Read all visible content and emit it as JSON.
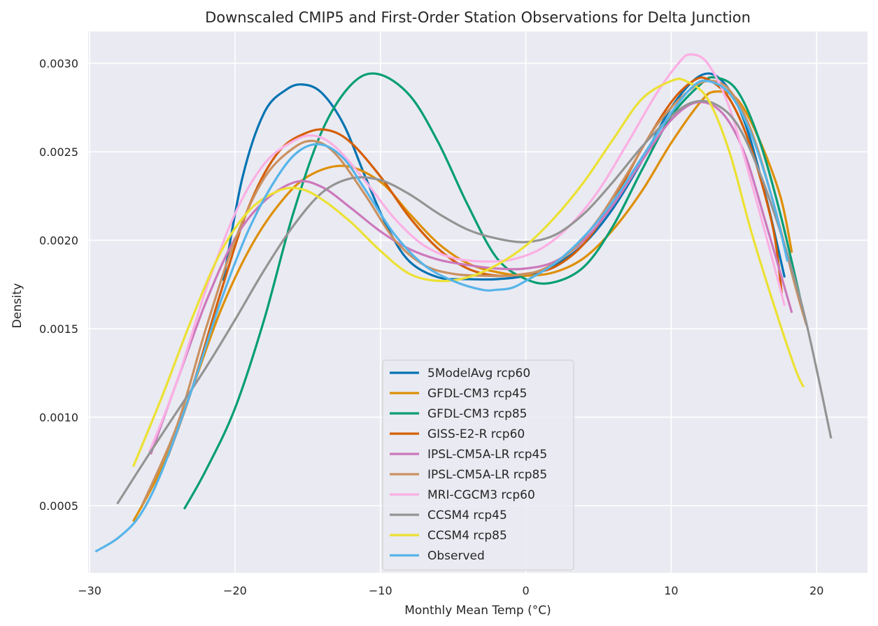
{
  "chart_data": {
    "type": "line",
    "title": "Downscaled CMIP5 and First-Order Station Observations for Delta Junction",
    "xlabel": "Monthly Mean Temp (°C)",
    "ylabel": "Density",
    "xlim": [
      -30.1,
      23.5
    ],
    "ylim": [
      0.00012,
      0.00318
    ],
    "xticks": [
      -30,
      -20,
      -10,
      0,
      10,
      20
    ],
    "xtick_labels": [
      "−30",
      "−20",
      "−10",
      "0",
      "10",
      "20"
    ],
    "yticks": [
      0.0005,
      0.001,
      0.0015,
      0.002,
      0.0025,
      0.003
    ],
    "ytick_labels": [
      "0.0005",
      "0.0010",
      "0.0015",
      "0.0020",
      "0.0025",
      "0.0030"
    ],
    "grid": true,
    "background": "#eaeaf2",
    "legend_position": "lower-center",
    "series": [
      {
        "name": "5ModelAvg rcp60",
        "color": "#0173b2",
        "points": [
          [
            -20.8,
            0.00177
          ],
          [
            -19.5,
            0.00235
          ],
          [
            -18,
            0.00272
          ],
          [
            -16.5,
            0.00285
          ],
          [
            -15.3,
            0.00288
          ],
          [
            -14,
            0.00283
          ],
          [
            -12.5,
            0.00265
          ],
          [
            -11,
            0.00235
          ],
          [
            -9.5,
            0.00207
          ],
          [
            -8,
            0.00188
          ],
          [
            -6,
            0.00179
          ],
          [
            -4,
            0.00178
          ],
          [
            -2,
            0.00178
          ],
          [
            0,
            0.0018
          ],
          [
            2,
            0.00186
          ],
          [
            4,
            0.00198
          ],
          [
            6,
            0.00218
          ],
          [
            8,
            0.00245
          ],
          [
            10,
            0.00275
          ],
          [
            12,
            0.00293
          ],
          [
            13.5,
            0.0029
          ],
          [
            15,
            0.00268
          ],
          [
            16.5,
            0.00225
          ],
          [
            17.8,
            0.00179
          ]
        ]
      },
      {
        "name": "GFDL-CM3 rcp45",
        "color": "#de8f05",
        "points": [
          [
            -27,
            0.00041
          ],
          [
            -25,
            0.00072
          ],
          [
            -23,
            0.00115
          ],
          [
            -21,
            0.0016
          ],
          [
            -19,
            0.00195
          ],
          [
            -17,
            0.0022
          ],
          [
            -15,
            0.00236
          ],
          [
            -12.5,
            0.00242
          ],
          [
            -10,
            0.00233
          ],
          [
            -8,
            0.00215
          ],
          [
            -6,
            0.00198
          ],
          [
            -4,
            0.00187
          ],
          [
            -2,
            0.00182
          ],
          [
            0,
            0.0018
          ],
          [
            2,
            0.00182
          ],
          [
            4,
            0.0019
          ],
          [
            6,
            0.00206
          ],
          [
            8,
            0.00228
          ],
          [
            10,
            0.00255
          ],
          [
            12,
            0.00278
          ],
          [
            13,
            0.00284
          ],
          [
            14.5,
            0.0028
          ],
          [
            16,
            0.00258
          ],
          [
            17.5,
            0.00225
          ],
          [
            18.3,
            0.00193
          ]
        ]
      },
      {
        "name": "GFDL-CM3 rcp85",
        "color": "#029e73",
        "points": [
          [
            -23.5,
            0.00048
          ],
          [
            -22,
            0.0007
          ],
          [
            -20,
            0.00105
          ],
          [
            -18,
            0.00155
          ],
          [
            -16,
            0.00215
          ],
          [
            -14,
            0.00262
          ],
          [
            -12,
            0.00288
          ],
          [
            -10.2,
            0.00294
          ],
          [
            -8,
            0.00282
          ],
          [
            -6,
            0.00255
          ],
          [
            -4,
            0.0022
          ],
          [
            -2,
            0.0019
          ],
          [
            0,
            0.00178
          ],
          [
            1.8,
            0.00176
          ],
          [
            4,
            0.00185
          ],
          [
            6,
            0.00208
          ],
          [
            8,
            0.0024
          ],
          [
            10,
            0.0027
          ],
          [
            12,
            0.00288
          ],
          [
            13,
            0.00292
          ],
          [
            14.5,
            0.00285
          ],
          [
            16,
            0.00258
          ],
          [
            17.5,
            0.00215
          ],
          [
            19.1,
            0.00159
          ]
        ]
      },
      {
        "name": "GISS-E2-R rcp60",
        "color": "#d55e00",
        "points": [
          [
            -24.6,
            0.00078
          ],
          [
            -23,
            0.00115
          ],
          [
            -21,
            0.0017
          ],
          [
            -19,
            0.0022
          ],
          [
            -17,
            0.0025
          ],
          [
            -15,
            0.00261
          ],
          [
            -13.5,
            0.00262
          ],
          [
            -12,
            0.00255
          ],
          [
            -10,
            0.00236
          ],
          [
            -8,
            0.00213
          ],
          [
            -6,
            0.00195
          ],
          [
            -4,
            0.00184
          ],
          [
            -2,
            0.0018
          ],
          [
            0,
            0.00181
          ],
          [
            2,
            0.00185
          ],
          [
            4,
            0.00198
          ],
          [
            6,
            0.00222
          ],
          [
            8,
            0.00252
          ],
          [
            10,
            0.00278
          ],
          [
            11.5,
            0.0029
          ],
          [
            12.5,
            0.00291
          ],
          [
            14,
            0.0028
          ],
          [
            15.5,
            0.00252
          ],
          [
            17,
            0.00207
          ],
          [
            17.6,
            0.0017
          ]
        ]
      },
      {
        "name": "IPSL-CM5A-LR rcp45",
        "color": "#cc78bc",
        "points": [
          [
            -25.8,
            0.00079
          ],
          [
            -24,
            0.0012
          ],
          [
            -22,
            0.00165
          ],
          [
            -20,
            0.00201
          ],
          [
            -18,
            0.00222
          ],
          [
            -15.8,
            0.00233
          ],
          [
            -14,
            0.0023
          ],
          [
            -12,
            0.00218
          ],
          [
            -10,
            0.00205
          ],
          [
            -8,
            0.00195
          ],
          [
            -6,
            0.00189
          ],
          [
            -4,
            0.00186
          ],
          [
            -2,
            0.00184
          ],
          [
            0,
            0.00184
          ],
          [
            2,
            0.00188
          ],
          [
            4,
            0.002
          ],
          [
            6,
            0.0022
          ],
          [
            8,
            0.00245
          ],
          [
            10,
            0.00268
          ],
          [
            11.8,
            0.00278
          ],
          [
            13.5,
            0.00272
          ],
          [
            15,
            0.0025
          ],
          [
            16.5,
            0.0021
          ],
          [
            18.3,
            0.00159
          ]
        ]
      },
      {
        "name": "IPSL-CM5A-LR rcp85",
        "color": "#ca9161",
        "points": [
          [
            -26.4,
            0.0005
          ],
          [
            -24,
            0.00095
          ],
          [
            -22,
            0.0015
          ],
          [
            -20,
            0.002
          ],
          [
            -18,
            0.00235
          ],
          [
            -16,
            0.00252
          ],
          [
            -14.5,
            0.00256
          ],
          [
            -13,
            0.00248
          ],
          [
            -11,
            0.00225
          ],
          [
            -9,
            0.002
          ],
          [
            -7,
            0.00186
          ],
          [
            -5,
            0.00181
          ],
          [
            -3,
            0.0018
          ],
          [
            -1,
            0.0018
          ],
          [
            1,
            0.00183
          ],
          [
            3,
            0.00193
          ],
          [
            5,
            0.00212
          ],
          [
            7,
            0.00238
          ],
          [
            9,
            0.00265
          ],
          [
            11,
            0.00283
          ],
          [
            12.5,
            0.0029
          ],
          [
            14,
            0.00285
          ],
          [
            15.5,
            0.00262
          ],
          [
            17,
            0.00222
          ],
          [
            18.5,
            0.00175
          ],
          [
            19.3,
            0.00152
          ]
        ]
      },
      {
        "name": "MRI-CGCM3 rcp60",
        "color": "#fbafe4",
        "points": [
          [
            -25.9,
            0.0008
          ],
          [
            -24,
            0.0012
          ],
          [
            -22,
            0.00172
          ],
          [
            -20,
            0.00215
          ],
          [
            -18,
            0.00243
          ],
          [
            -16,
            0.00256
          ],
          [
            -14.5,
            0.00259
          ],
          [
            -13,
            0.00252
          ],
          [
            -11,
            0.00233
          ],
          [
            -9,
            0.00212
          ],
          [
            -7,
            0.00197
          ],
          [
            -5,
            0.0019
          ],
          [
            -3,
            0.00188
          ],
          [
            -1,
            0.00189
          ],
          [
            1,
            0.00195
          ],
          [
            3,
            0.00208
          ],
          [
            5,
            0.00228
          ],
          [
            7,
            0.00255
          ],
          [
            9,
            0.00283
          ],
          [
            10.5,
            0.003
          ],
          [
            11.3,
            0.00305
          ],
          [
            12.5,
            0.003
          ],
          [
            14,
            0.00275
          ],
          [
            15.5,
            0.00233
          ],
          [
            17,
            0.00188
          ],
          [
            17.8,
            0.00163
          ]
        ]
      },
      {
        "name": "CCSM4 rcp45",
        "color": "#949494",
        "points": [
          [
            -28.1,
            0.00051
          ],
          [
            -26,
            0.00078
          ],
          [
            -24,
            0.00103
          ],
          [
            -22,
            0.00128
          ],
          [
            -20,
            0.00155
          ],
          [
            -18,
            0.00183
          ],
          [
            -16,
            0.00208
          ],
          [
            -14,
            0.00227
          ],
          [
            -12,
            0.00235
          ],
          [
            -10,
            0.00234
          ],
          [
            -8,
            0.00226
          ],
          [
            -6,
            0.00215
          ],
          [
            -4,
            0.00206
          ],
          [
            -2,
            0.00201
          ],
          [
            0,
            0.00199
          ],
          [
            2,
            0.00203
          ],
          [
            4,
            0.00215
          ],
          [
            6,
            0.00233
          ],
          [
            8,
            0.00253
          ],
          [
            10,
            0.0027
          ],
          [
            11.5,
            0.00278
          ],
          [
            13,
            0.00277
          ],
          [
            14.5,
            0.00266
          ],
          [
            16,
            0.0024
          ],
          [
            17.5,
            0.00205
          ],
          [
            19,
            0.00163
          ],
          [
            20,
            0.00127
          ],
          [
            21,
            0.00088
          ]
        ]
      },
      {
        "name": "CCSM4 rcp85",
        "color": "#ece133",
        "points": [
          [
            -27,
            0.00072
          ],
          [
            -25,
            0.00112
          ],
          [
            -23,
            0.00155
          ],
          [
            -21,
            0.00193
          ],
          [
            -19,
            0.00217
          ],
          [
            -17,
            0.00228
          ],
          [
            -15.5,
            0.00229
          ],
          [
            -14,
            0.00223
          ],
          [
            -12,
            0.0021
          ],
          [
            -10,
            0.00194
          ],
          [
            -8,
            0.00181
          ],
          [
            -6,
            0.00177
          ],
          [
            -4,
            0.00179
          ],
          [
            -2,
            0.00186
          ],
          [
            0,
            0.00197
          ],
          [
            2,
            0.00213
          ],
          [
            4,
            0.00233
          ],
          [
            6,
            0.00257
          ],
          [
            8,
            0.0028
          ],
          [
            10,
            0.0029
          ],
          [
            11,
            0.0029
          ],
          [
            12.5,
            0.0028
          ],
          [
            14,
            0.0025
          ],
          [
            15.5,
            0.00205
          ],
          [
            17,
            0.00165
          ],
          [
            18.5,
            0.00128
          ],
          [
            19.1,
            0.00117
          ]
        ]
      },
      {
        "name": "Observed",
        "color": "#56b4e9",
        "points": [
          [
            -29.6,
            0.00024
          ],
          [
            -28,
            0.00032
          ],
          [
            -26.5,
            0.00045
          ],
          [
            -25,
            0.0007
          ],
          [
            -23,
            0.00115
          ],
          [
            -21,
            0.00165
          ],
          [
            -19,
            0.00207
          ],
          [
            -17,
            0.00237
          ],
          [
            -15.5,
            0.00251
          ],
          [
            -14,
            0.00254
          ],
          [
            -12.5,
            0.00246
          ],
          [
            -11,
            0.00228
          ],
          [
            -9,
            0.00203
          ],
          [
            -7,
            0.00186
          ],
          [
            -5,
            0.00177
          ],
          [
            -3,
            0.00172
          ],
          [
            -2,
            0.00172
          ],
          [
            -1,
            0.00173
          ],
          [
            0,
            0.00177
          ],
          [
            2,
            0.00187
          ],
          [
            4,
            0.00202
          ],
          [
            6,
            0.00222
          ],
          [
            8,
            0.00247
          ],
          [
            10,
            0.00272
          ],
          [
            11.5,
            0.00287
          ],
          [
            12.5,
            0.0029
          ],
          [
            14,
            0.00283
          ],
          [
            15.5,
            0.0026
          ],
          [
            17,
            0.00222
          ],
          [
            18,
            0.00188
          ]
        ]
      }
    ]
  }
}
